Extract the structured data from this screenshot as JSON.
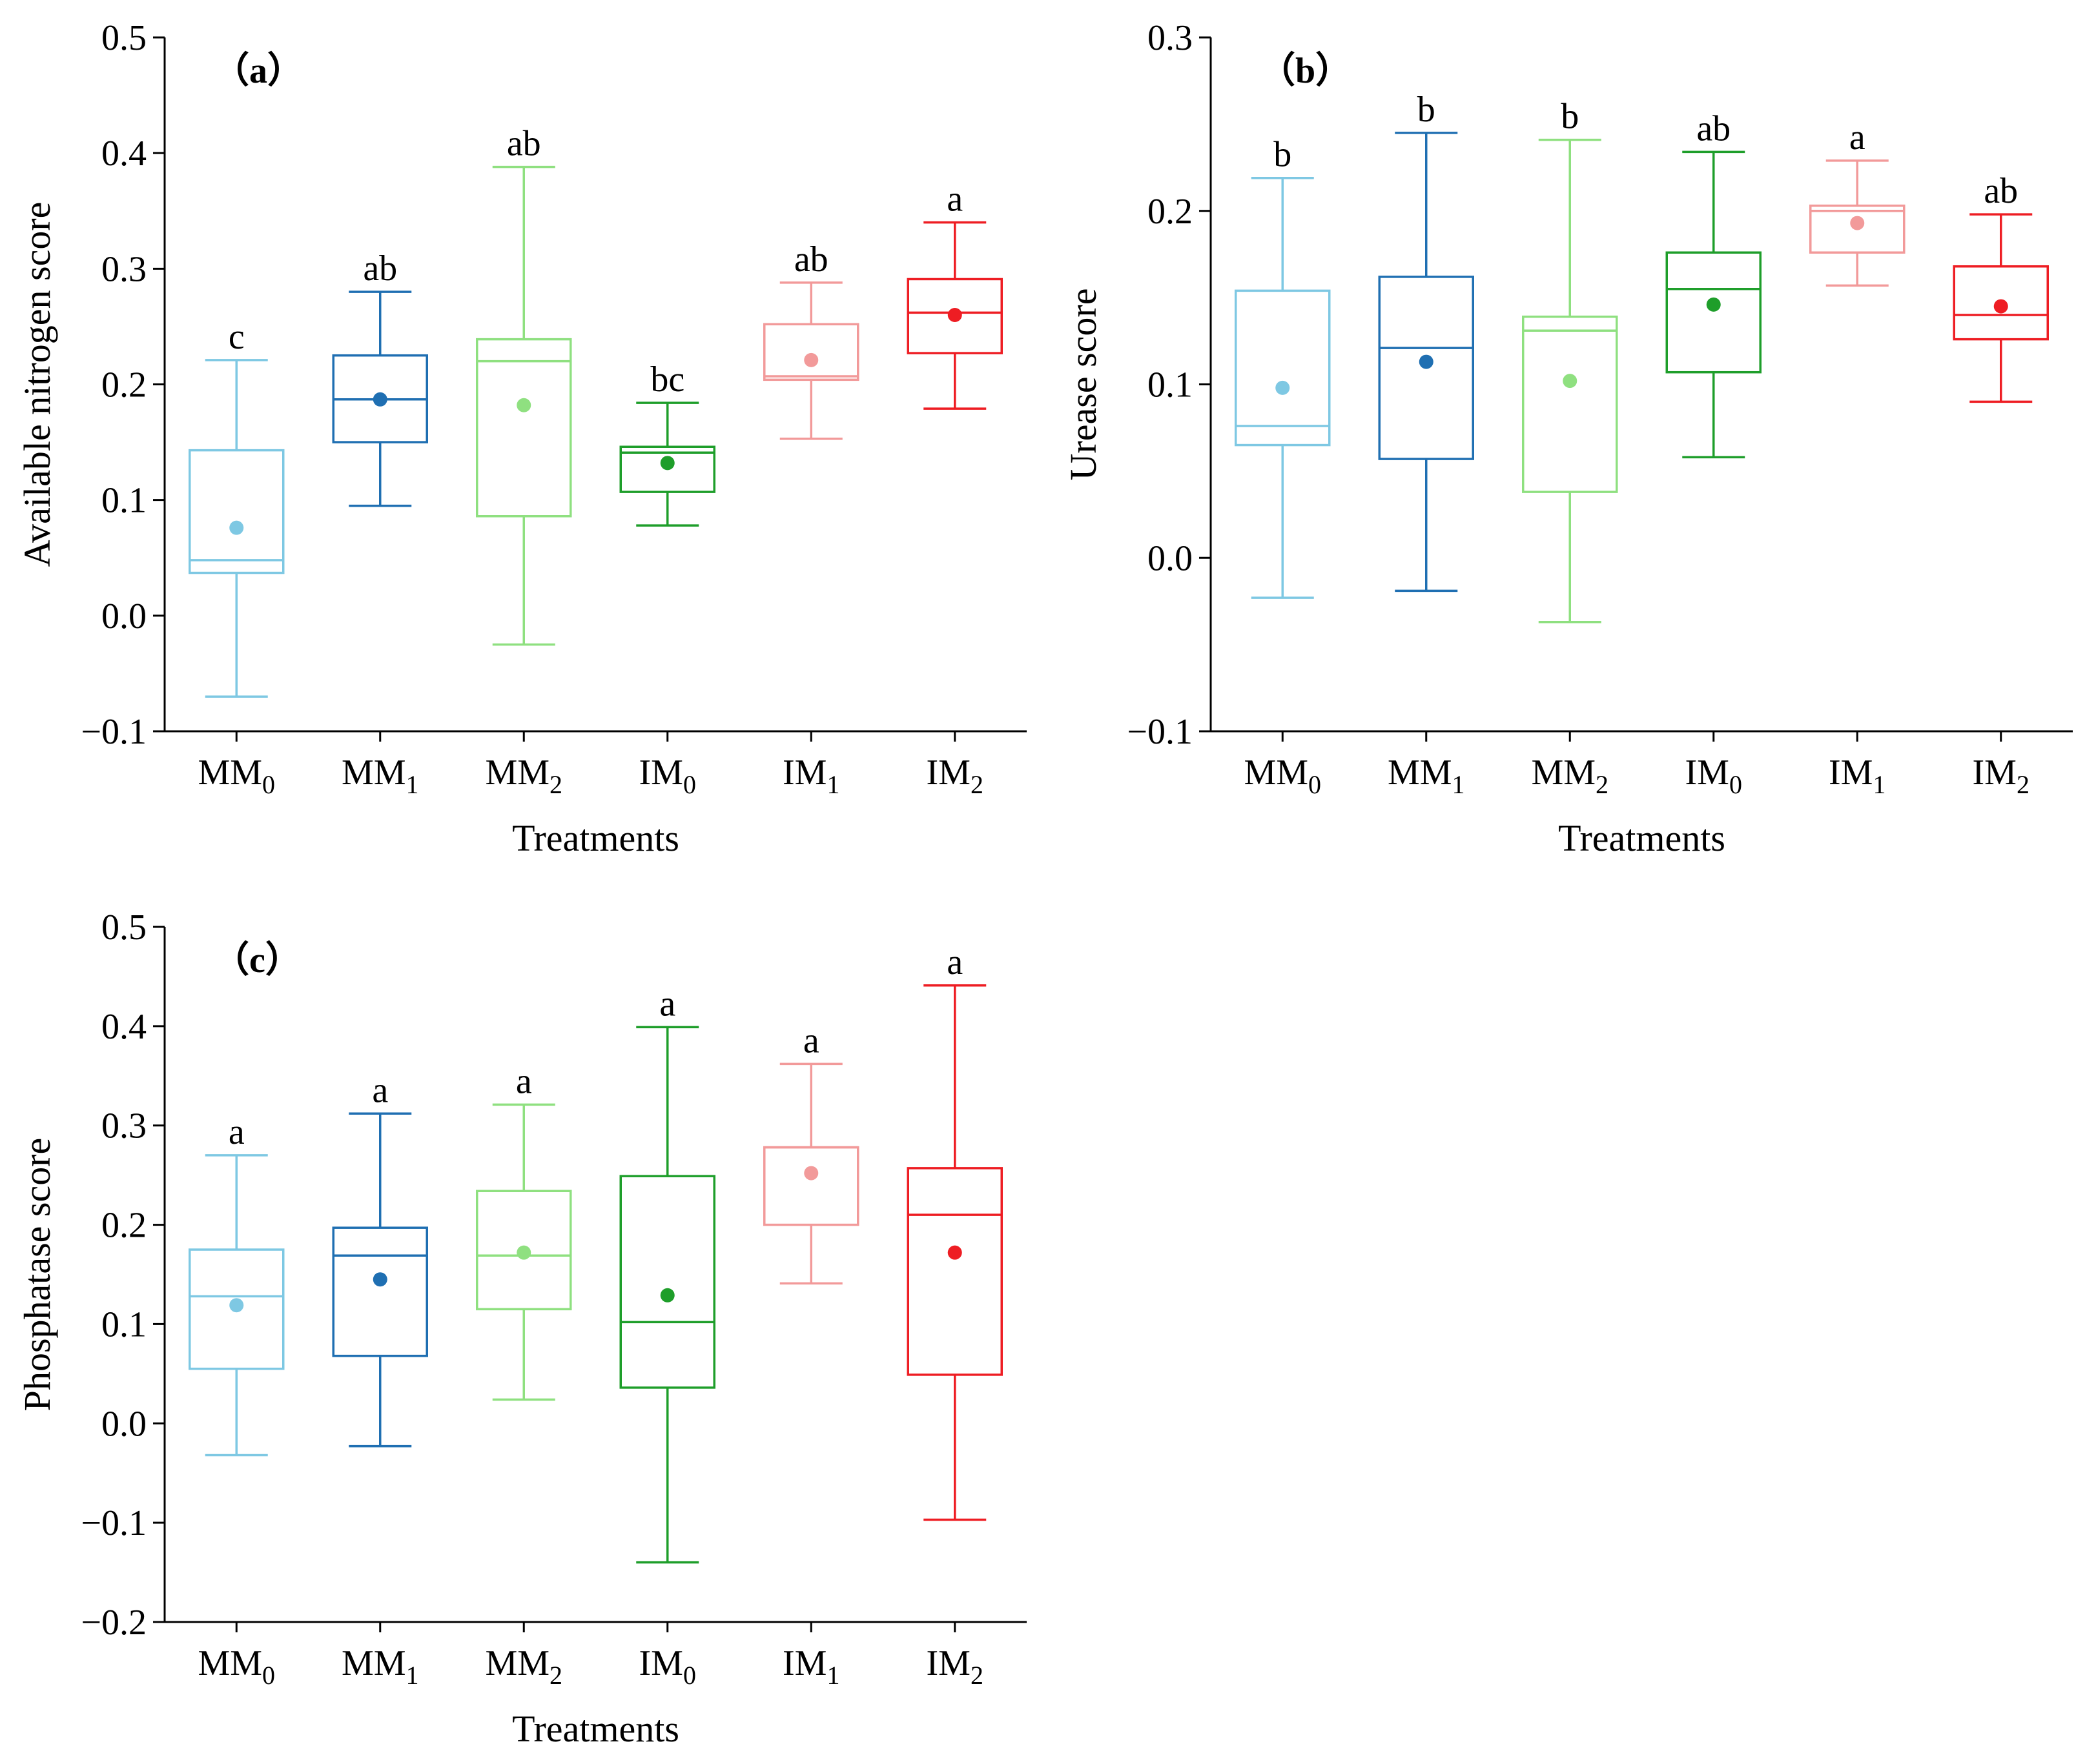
{
  "colors": {
    "MM0": "#7ec8e3",
    "MM1": "#1f6fb2",
    "MM2": "#8fe080",
    "IM0": "#1e9e2a",
    "IM1": "#f29a9a",
    "IM2": "#ee1d23"
  },
  "chart_data": [
    {
      "type": "box",
      "panel_label": "（a）",
      "xlabel": "Treatments",
      "ylabel": "Available nitrogen score",
      "ylim": [
        -0.1,
        0.5
      ],
      "yticks": [
        -0.1,
        0.0,
        0.1,
        0.2,
        0.3,
        0.4,
        0.5
      ],
      "ytick_labels": [
        "−0.1",
        "0.0",
        "0.1",
        "0.2",
        "0.3",
        "0.4",
        "0.5"
      ],
      "categories": [
        {
          "base": "MM",
          "sub": "0"
        },
        {
          "base": "MM",
          "sub": "1"
        },
        {
          "base": "MM",
          "sub": "2"
        },
        {
          "base": "IM",
          "sub": "0"
        },
        {
          "base": "IM",
          "sub": "1"
        },
        {
          "base": "IM",
          "sub": "2"
        }
      ],
      "boxes": [
        {
          "whisker_low": -0.07,
          "q1": 0.037,
          "median": 0.048,
          "q3": 0.143,
          "whisker_high": 0.221,
          "mean": 0.076,
          "letter": "c"
        },
        {
          "whisker_low": 0.095,
          "q1": 0.15,
          "median": 0.187,
          "q3": 0.225,
          "whisker_high": 0.28,
          "mean": 0.187,
          "letter": "ab"
        },
        {
          "whisker_low": -0.025,
          "q1": 0.086,
          "median": 0.22,
          "q3": 0.239,
          "whisker_high": 0.388,
          "mean": 0.182,
          "letter": "ab"
        },
        {
          "whisker_low": 0.078,
          "q1": 0.107,
          "median": 0.141,
          "q3": 0.146,
          "whisker_high": 0.184,
          "mean": 0.132,
          "letter": "bc"
        },
        {
          "whisker_low": 0.153,
          "q1": 0.204,
          "median": 0.207,
          "q3": 0.252,
          "whisker_high": 0.288,
          "mean": 0.221,
          "letter": "ab"
        },
        {
          "whisker_low": 0.179,
          "q1": 0.227,
          "median": 0.262,
          "q3": 0.291,
          "whisker_high": 0.34,
          "mean": 0.26,
          "letter": "a"
        }
      ]
    },
    {
      "type": "box",
      "panel_label": "（b）",
      "xlabel": "Treatments",
      "ylabel": "Urease score",
      "ylim": [
        -0.1,
        0.3
      ],
      "yticks": [
        -0.1,
        0.0,
        0.1,
        0.2,
        0.3
      ],
      "ytick_labels": [
        "−0.1",
        "0.0",
        "0.1",
        "0.2",
        "0.3"
      ],
      "categories": [
        {
          "base": "MM",
          "sub": "0"
        },
        {
          "base": "MM",
          "sub": "1"
        },
        {
          "base": "MM",
          "sub": "2"
        },
        {
          "base": "IM",
          "sub": "0"
        },
        {
          "base": "IM",
          "sub": "1"
        },
        {
          "base": "IM",
          "sub": "2"
        }
      ],
      "boxes": [
        {
          "whisker_low": -0.023,
          "q1": 0.065,
          "median": 0.076,
          "q3": 0.154,
          "whisker_high": 0.219,
          "mean": 0.098,
          "letter": "b"
        },
        {
          "whisker_low": -0.019,
          "q1": 0.057,
          "median": 0.121,
          "q3": 0.162,
          "whisker_high": 0.245,
          "mean": 0.113,
          "letter": "b"
        },
        {
          "whisker_low": -0.037,
          "q1": 0.038,
          "median": 0.131,
          "q3": 0.139,
          "whisker_high": 0.241,
          "mean": 0.102,
          "letter": "b"
        },
        {
          "whisker_low": 0.058,
          "q1": 0.107,
          "median": 0.155,
          "q3": 0.176,
          "whisker_high": 0.234,
          "mean": 0.146,
          "letter": "ab"
        },
        {
          "whisker_low": 0.157,
          "q1": 0.176,
          "median": 0.2,
          "q3": 0.203,
          "whisker_high": 0.229,
          "mean": 0.193,
          "letter": "a"
        },
        {
          "whisker_low": 0.09,
          "q1": 0.126,
          "median": 0.14,
          "q3": 0.168,
          "whisker_high": 0.198,
          "mean": 0.145,
          "letter": "ab"
        }
      ]
    },
    {
      "type": "box",
      "panel_label": "（c）",
      "xlabel": "Treatments",
      "ylabel": "Phosphatase score",
      "ylim": [
        -0.2,
        0.5
      ],
      "yticks": [
        -0.2,
        -0.1,
        0.0,
        0.1,
        0.2,
        0.3,
        0.4,
        0.5
      ],
      "ytick_labels": [
        "−0.2",
        "−0.1",
        "0.0",
        "0.1",
        "0.2",
        "0.3",
        "0.4",
        "0.5"
      ],
      "categories": [
        {
          "base": "MM",
          "sub": "0"
        },
        {
          "base": "MM",
          "sub": "1"
        },
        {
          "base": "MM",
          "sub": "2"
        },
        {
          "base": "IM",
          "sub": "0"
        },
        {
          "base": "IM",
          "sub": "1"
        },
        {
          "base": "IM",
          "sub": "2"
        }
      ],
      "boxes": [
        {
          "whisker_low": -0.032,
          "q1": 0.055,
          "median": 0.128,
          "q3": 0.175,
          "whisker_high": 0.27,
          "mean": 0.119,
          "letter": "a"
        },
        {
          "whisker_low": -0.023,
          "q1": 0.068,
          "median": 0.169,
          "q3": 0.197,
          "whisker_high": 0.312,
          "mean": 0.145,
          "letter": "a"
        },
        {
          "whisker_low": 0.024,
          "q1": 0.115,
          "median": 0.169,
          "q3": 0.234,
          "whisker_high": 0.321,
          "mean": 0.172,
          "letter": "a"
        },
        {
          "whisker_low": -0.14,
          "q1": 0.036,
          "median": 0.102,
          "q3": 0.249,
          "whisker_high": 0.399,
          "mean": 0.129,
          "letter": "a"
        },
        {
          "whisker_low": 0.141,
          "q1": 0.2,
          "median": 0.278,
          "q3": 0.278,
          "whisker_high": 0.362,
          "mean": 0.252,
          "letter": "a"
        },
        {
          "whisker_low": -0.097,
          "q1": 0.049,
          "median": 0.21,
          "q3": 0.257,
          "whisker_high": 0.441,
          "mean": 0.172,
          "letter": "a"
        }
      ]
    }
  ]
}
